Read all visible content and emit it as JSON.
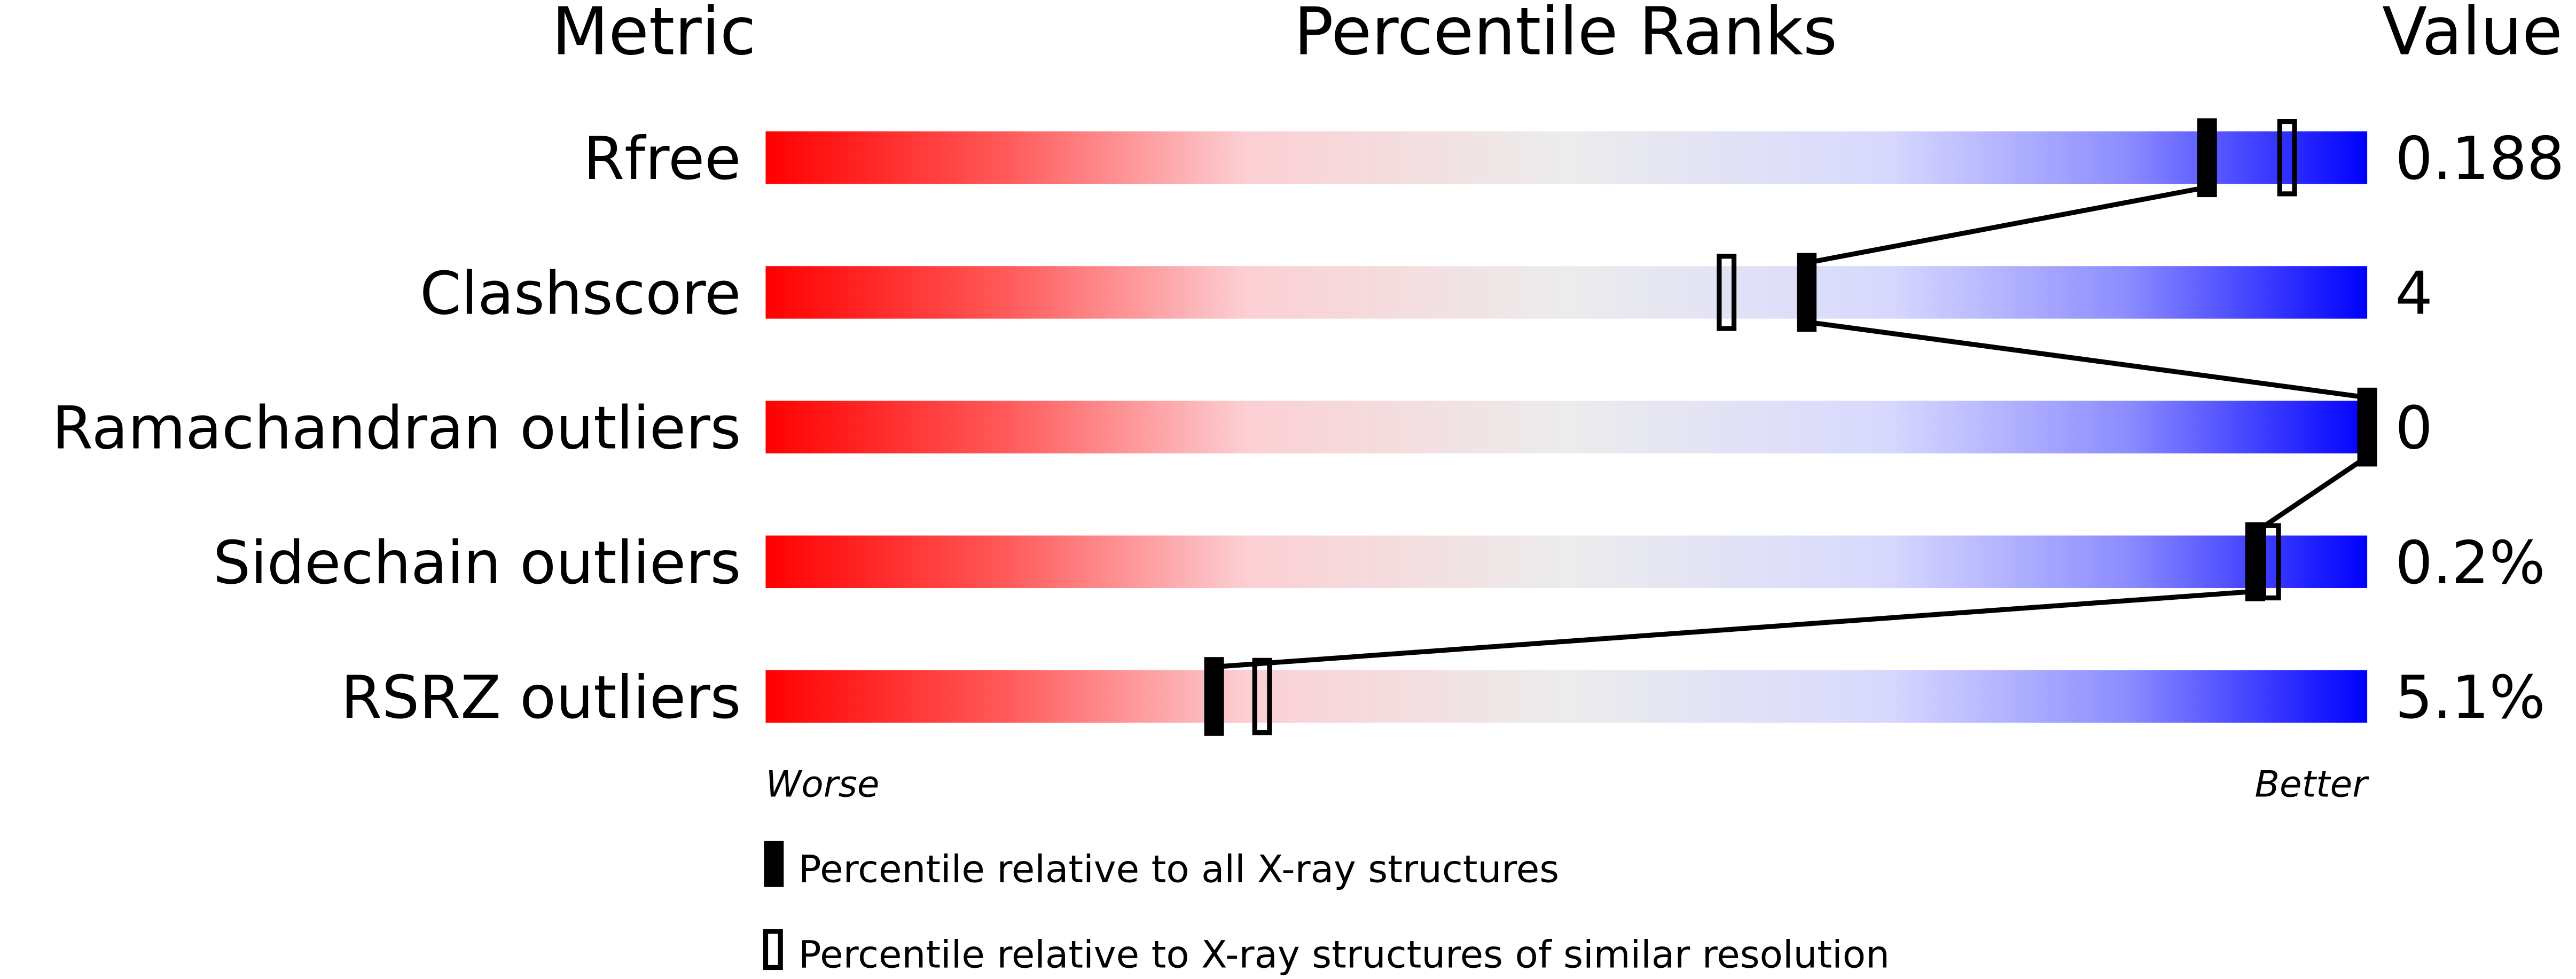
{
  "chart_data": {
    "type": "percentile-bar",
    "headers": {
      "metric": "Metric",
      "percentile": "Percentile Ranks",
      "value": "Value"
    },
    "xlim": [
      0,
      100
    ],
    "metrics": [
      {
        "name": "Rfree",
        "value": "0.188",
        "percentile_all": 90,
        "percentile_similar": 95
      },
      {
        "name": "Clashscore",
        "value": "4",
        "percentile_all": 65,
        "percentile_similar": 60
      },
      {
        "name": "Ramachandran outliers",
        "value": "0",
        "percentile_all": 100,
        "percentile_similar": 100
      },
      {
        "name": "Sidechain outliers",
        "value": "0.2%",
        "percentile_all": 93,
        "percentile_similar": 94
      },
      {
        "name": "RSRZ outliers",
        "value": "5.1%",
        "percentile_all": 28,
        "percentile_similar": 31
      }
    ],
    "axis_labels": {
      "left": "Worse",
      "right": "Better"
    },
    "legend": {
      "filled": "Percentile relative to all X-ray structures",
      "open": "Percentile relative to X-ray structures of similar resolution"
    },
    "colors": {
      "worse": "#ff0000",
      "middle": "#eeeeee",
      "better": "#0000ff",
      "marker": "#000000"
    }
  }
}
